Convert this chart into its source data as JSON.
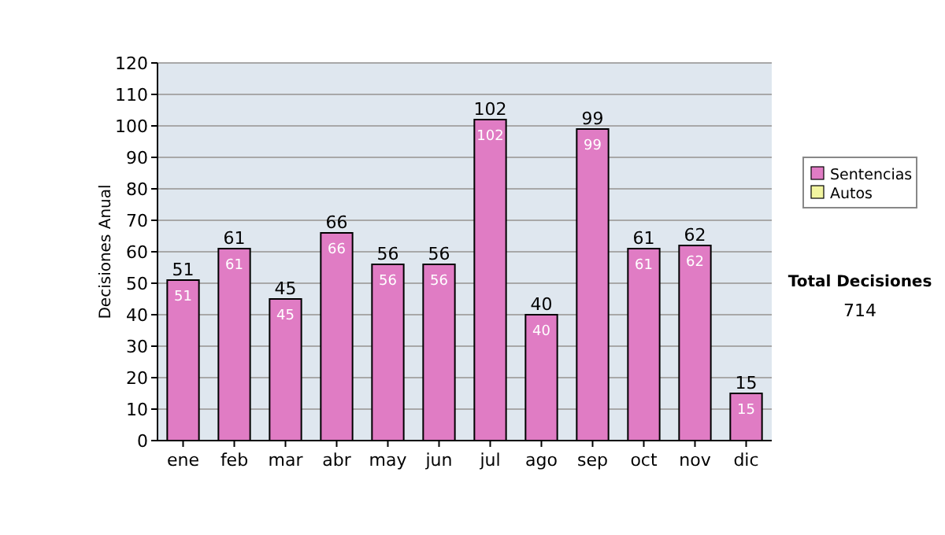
{
  "chart_data": {
    "type": "bar",
    "ylabel": "Decisiones Anual",
    "categories": [
      "ene",
      "feb",
      "mar",
      "abr",
      "may",
      "jun",
      "jul",
      "ago",
      "sep",
      "oct",
      "nov",
      "dic"
    ],
    "series": [
      {
        "name": "Sentencias",
        "color": "#e07cc4",
        "values": [
          51,
          61,
          45,
          66,
          56,
          56,
          102,
          40,
          99,
          61,
          62,
          15
        ],
        "value_labels": [
          "51",
          "61",
          "45",
          "66",
          "56",
          "56",
          "102",
          "40",
          "99",
          "61",
          "62",
          "15"
        ]
      },
      {
        "name": "Autos",
        "color": "#f2f5a0",
        "values": [
          0,
          0,
          0,
          0,
          0,
          0,
          0,
          0,
          0,
          0,
          0,
          0
        ],
        "value_labels": [
          null,
          null,
          null,
          null,
          null,
          null,
          null,
          null,
          null,
          null,
          null,
          null
        ]
      }
    ],
    "stacked": true,
    "totals": [
      "51",
      "61",
      "45",
      "66",
      "56",
      "56",
      "102",
      "40",
      "99",
      "61",
      "62",
      "15"
    ],
    "ylim": [
      0,
      120
    ],
    "yticks": [
      0,
      10,
      20,
      30,
      40,
      50,
      60,
      70,
      80,
      90,
      100,
      110,
      120
    ],
    "grid": "y",
    "legend": "right",
    "annotations": [
      "Total Decisiones",
      "714"
    ]
  }
}
